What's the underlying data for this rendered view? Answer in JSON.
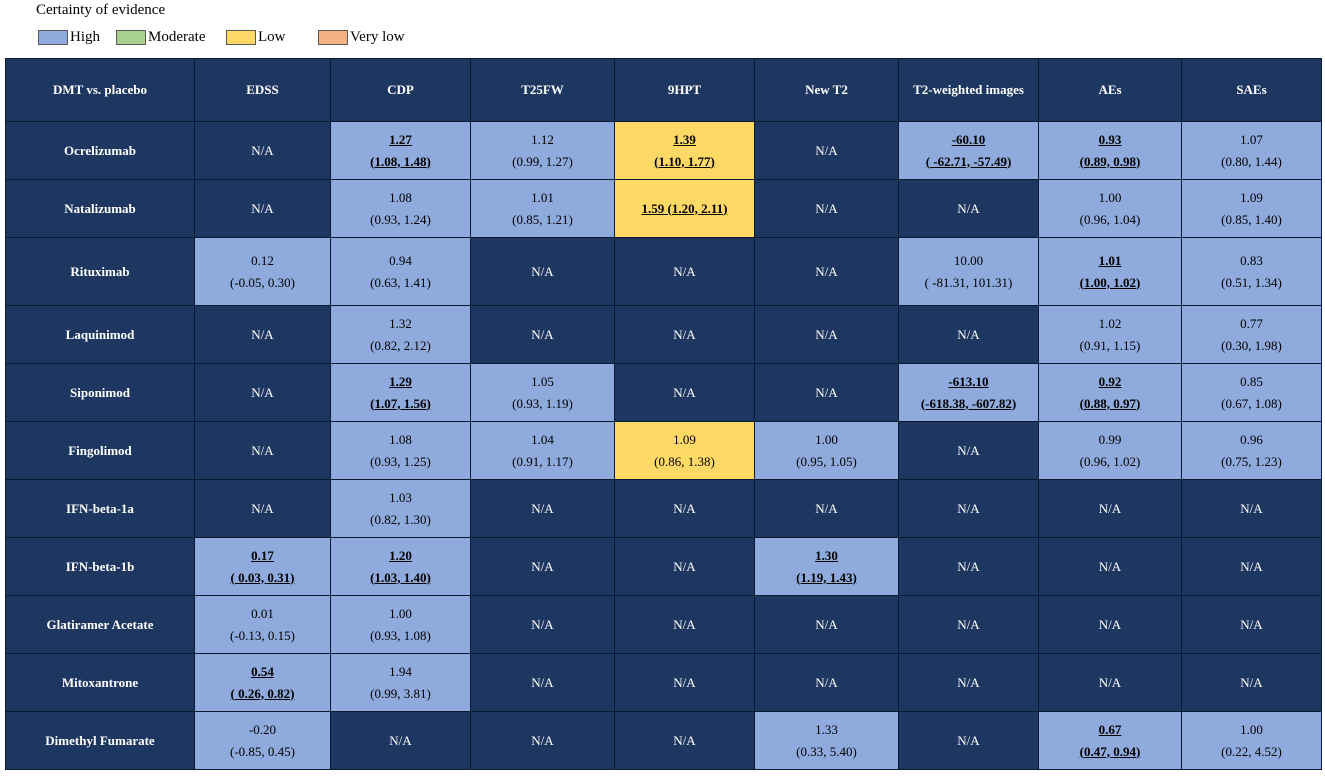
{
  "legend": {
    "title": "Certainty of evidence",
    "items": [
      {
        "label": "High",
        "color": "#8faadc"
      },
      {
        "label": "Moderate",
        "color": "#a9d18e"
      },
      {
        "label": "Low",
        "color": "#ffd966"
      },
      {
        "label": "Very low",
        "color": "#f4b183"
      }
    ]
  },
  "table": {
    "headers": [
      "DMT vs. placebo",
      "EDSS",
      "CDP",
      "T25FW",
      "9HPT",
      "New T2",
      "T2-weighted images",
      "AEs",
      "SAEs"
    ],
    "rows": [
      {
        "name": "Ocrelizumab",
        "cells": [
          {
            "cert": "na",
            "l1": "N/A"
          },
          {
            "cert": "high",
            "sig": true,
            "l1": "1.27",
            "l2": "(1.08, 1.48)"
          },
          {
            "cert": "high",
            "l1": "1.12",
            "l2": "(0.99, 1.27)"
          },
          {
            "cert": "low",
            "sig": true,
            "l1": "1.39",
            "l2": "(1.10, 1.77)"
          },
          {
            "cert": "na",
            "l1": "N/A"
          },
          {
            "cert": "high",
            "sig": true,
            "l1": "-60.10",
            "l2": "( -62.71, -57.49)"
          },
          {
            "cert": "high",
            "sig": true,
            "l1": "0.93",
            "l2": "(0.89, 0.98)"
          },
          {
            "cert": "high",
            "l1": "1.07",
            "l2": "(0.80, 1.44)"
          }
        ]
      },
      {
        "name": "Natalizumab",
        "cells": [
          {
            "cert": "na",
            "l1": "N/A"
          },
          {
            "cert": "high",
            "l1": "1.08",
            "l2": "(0.93, 1.24)"
          },
          {
            "cert": "high",
            "l1": "1.01",
            "l2": "(0.85, 1.21)"
          },
          {
            "cert": "low",
            "sig": true,
            "l1": "1.59 (1.20, 2.11)"
          },
          {
            "cert": "na",
            "l1": "N/A"
          },
          {
            "cert": "na",
            "l1": "N/A"
          },
          {
            "cert": "high",
            "l1": "1.00",
            "l2": "(0.96, 1.04)"
          },
          {
            "cert": "high",
            "l1": "1.09",
            "l2": "(0.85, 1.40)"
          }
        ]
      },
      {
        "name": "Rituximab",
        "cells": [
          {
            "cert": "high",
            "l1": "0.12",
            "l2": "(-0.05, 0.30)"
          },
          {
            "cert": "high",
            "l1": "0.94",
            "l2": "(0.63, 1.41)"
          },
          {
            "cert": "na",
            "l1": "N/A"
          },
          {
            "cert": "na",
            "l1": "N/A"
          },
          {
            "cert": "na",
            "l1": "N/A"
          },
          {
            "cert": "high",
            "l1": "10.00",
            "l2": "( -81.31, 101.31)"
          },
          {
            "cert": "high",
            "sig": true,
            "l1": "1.01",
            "l2": "(1.00, 1.02)"
          },
          {
            "cert": "high",
            "l1": "0.83",
            "l2": "(0.51, 1.34)"
          }
        ]
      },
      {
        "name": "Laquinimod",
        "cells": [
          {
            "cert": "na",
            "l1": "N/A"
          },
          {
            "cert": "high",
            "l1": "1.32",
            "l2": "(0.82, 2.12)"
          },
          {
            "cert": "na",
            "l1": "N/A"
          },
          {
            "cert": "na",
            "l1": "N/A"
          },
          {
            "cert": "na",
            "l1": "N/A"
          },
          {
            "cert": "na",
            "l1": "N/A"
          },
          {
            "cert": "high",
            "l1": "1.02",
            "l2": "(0.91, 1.15)"
          },
          {
            "cert": "high",
            "l1": "0.77",
            "l2": "(0.30, 1.98)"
          }
        ]
      },
      {
        "name": "Siponimod",
        "cells": [
          {
            "cert": "na",
            "l1": "N/A"
          },
          {
            "cert": "high",
            "sig": true,
            "l1": "1.29",
            "l2": "(1.07, 1.56)"
          },
          {
            "cert": "high",
            "l1": "1.05",
            "l2": "(0.93, 1.19)"
          },
          {
            "cert": "na",
            "l1": "N/A"
          },
          {
            "cert": "na",
            "l1": "N/A"
          },
          {
            "cert": "high",
            "sig": true,
            "l1": "-613.10",
            "l2": "(-618.38, -607.82)"
          },
          {
            "cert": "high",
            "sig": true,
            "l1": "0.92",
            "l2": "(0.88, 0.97)"
          },
          {
            "cert": "high",
            "l1": "0.85",
            "l2": "(0.67, 1.08)"
          }
        ]
      },
      {
        "name": "Fingolimod",
        "cells": [
          {
            "cert": "na",
            "l1": "N/A"
          },
          {
            "cert": "high",
            "l1": "1.08",
            "l2": "(0.93, 1.25)"
          },
          {
            "cert": "high",
            "l1": "1.04",
            "l2": "(0.91, 1.17)"
          },
          {
            "cert": "low",
            "l1": "1.09",
            "l2": "(0.86, 1.38)"
          },
          {
            "cert": "high",
            "l1": "1.00",
            "l2": "(0.95, 1.05)"
          },
          {
            "cert": "na",
            "l1": "N/A"
          },
          {
            "cert": "high",
            "l1": "0.99",
            "l2": "(0.96, 1.02)"
          },
          {
            "cert": "high",
            "l1": "0.96",
            "l2": "(0.75, 1.23)"
          }
        ]
      },
      {
        "name": "IFN-beta-1a",
        "cells": [
          {
            "cert": "na",
            "l1": "N/A"
          },
          {
            "cert": "high",
            "l1": "1.03",
            "l2": "(0.82, 1.30)"
          },
          {
            "cert": "na",
            "l1": "N/A"
          },
          {
            "cert": "na",
            "l1": "N/A"
          },
          {
            "cert": "na",
            "l1": "N/A"
          },
          {
            "cert": "na",
            "l1": "N/A"
          },
          {
            "cert": "na",
            "l1": "N/A"
          },
          {
            "cert": "na",
            "l1": "N/A"
          }
        ]
      },
      {
        "name": "IFN-beta-1b",
        "cells": [
          {
            "cert": "high",
            "sig": true,
            "l1": "0.17",
            "l2": "( 0.03, 0.31)"
          },
          {
            "cert": "high",
            "sig": true,
            "l1": "1.20",
            "l2": "(1.03, 1.40)"
          },
          {
            "cert": "na",
            "l1": "N/A"
          },
          {
            "cert": "na",
            "l1": "N/A"
          },
          {
            "cert": "high",
            "sig": true,
            "l1": "1.30",
            "l2": "(1.19, 1.43)"
          },
          {
            "cert": "na",
            "l1": "N/A"
          },
          {
            "cert": "na",
            "l1": "N/A"
          },
          {
            "cert": "na",
            "l1": "N/A"
          }
        ]
      },
      {
        "name": "Glatiramer Acetate",
        "cells": [
          {
            "cert": "high",
            "l1": "0.01",
            "l2": "(-0.13, 0.15)"
          },
          {
            "cert": "high",
            "l1": "1.00",
            "l2": "(0.93, 1.08)"
          },
          {
            "cert": "na",
            "l1": "N/A"
          },
          {
            "cert": "na",
            "l1": "N/A"
          },
          {
            "cert": "na",
            "l1": "N/A"
          },
          {
            "cert": "na",
            "l1": "N/A"
          },
          {
            "cert": "na",
            "l1": "N/A"
          },
          {
            "cert": "na",
            "l1": "N/A"
          }
        ]
      },
      {
        "name": "Mitoxantrone",
        "cells": [
          {
            "cert": "high",
            "sig": true,
            "l1": "0.54",
            "l2": "( 0.26, 0.82)"
          },
          {
            "cert": "high",
            "l1": "1.94",
            "l2": "(0.99, 3.81)"
          },
          {
            "cert": "na",
            "l1": "N/A"
          },
          {
            "cert": "na",
            "l1": "N/A"
          },
          {
            "cert": "na",
            "l1": "N/A"
          },
          {
            "cert": "na",
            "l1": "N/A"
          },
          {
            "cert": "na",
            "l1": "N/A"
          },
          {
            "cert": "na",
            "l1": "N/A"
          }
        ]
      },
      {
        "name": "Dimethyl Fumarate",
        "cells": [
          {
            "cert": "high",
            "l1": "-0.20",
            "l2": "(-0.85, 0.45)"
          },
          {
            "cert": "na",
            "l1": "N/A"
          },
          {
            "cert": "na",
            "l1": "N/A"
          },
          {
            "cert": "na",
            "l1": "N/A"
          },
          {
            "cert": "high",
            "l1": "1.33",
            "l2": "(0.33, 5.40)"
          },
          {
            "cert": "na",
            "l1": "N/A"
          },
          {
            "cert": "high",
            "sig": true,
            "l1": "0.67",
            "l2": "(0.47, 0.94)"
          },
          {
            "cert": "high",
            "l1": "1.00",
            "l2": "(0.22, 4.52)"
          }
        ]
      }
    ]
  }
}
